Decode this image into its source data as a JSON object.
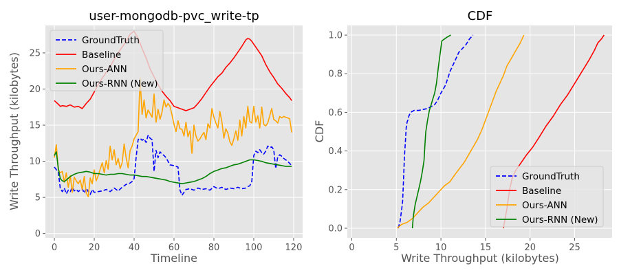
{
  "chart_data": [
    {
      "type": "line",
      "title": "user-mongodb-pvc_write-tp",
      "xlabel": "Timeline",
      "ylabel": "Write Throughput (kilobytes)",
      "xlim": [
        -4.5,
        124.5
      ],
      "ylim": [
        -0.6,
        28.8
      ],
      "xticks": [
        0,
        20,
        40,
        60,
        80,
        100,
        120
      ],
      "yticks": [
        0,
        5,
        10,
        15,
        20,
        25
      ],
      "grid": true,
      "legend_position": "top-left",
      "series": [
        {
          "name": "GroundTruth",
          "color": "#0000ff",
          "dash": "dashed",
          "x": [
            0,
            2,
            3,
            4,
            5,
            6,
            7,
            8,
            9,
            10,
            11,
            12,
            13,
            14,
            15,
            16,
            17,
            18,
            19,
            20,
            22,
            24,
            26,
            28,
            30,
            32,
            34,
            36,
            37,
            38,
            39,
            40,
            41,
            42,
            43,
            44,
            45,
            46,
            47,
            48,
            49,
            50,
            51,
            52,
            53,
            54,
            55,
            56,
            57,
            58,
            60,
            62,
            63,
            64,
            66,
            68,
            70,
            72,
            74,
            76,
            78,
            80,
            82,
            84,
            86,
            88,
            90,
            92,
            94,
            96,
            97,
            98,
            99,
            100,
            101,
            102,
            103,
            104,
            105,
            106,
            107,
            108,
            109,
            110,
            111,
            112,
            113,
            114,
            115,
            116,
            117,
            118,
            119
          ],
          "y": [
            9.2,
            8.5,
            6.2,
            5.8,
            6.3,
            5.5,
            6.0,
            5.8,
            6.4,
            5.9,
            6.1,
            5.8,
            6.0,
            6.2,
            5.6,
            6.3,
            5.8,
            5.4,
            6.1,
            5.7,
            5.8,
            5.9,
            6.1,
            5.8,
            6.3,
            5.9,
            6.4,
            6.8,
            6.9,
            7.0,
            7.2,
            7.6,
            10.5,
            13.0,
            13.2,
            12.9,
            13.1,
            12.6,
            13.6,
            13.2,
            13.0,
            8.6,
            11.5,
            10.5,
            11.3,
            11.0,
            10.8,
            10.5,
            10.0,
            9.5,
            9.4,
            9.2,
            6.0,
            5.3,
            6.1,
            6.2,
            6.0,
            6.3,
            6.1,
            6.2,
            6.0,
            6.5,
            6.2,
            6.4,
            6.1,
            6.3,
            6.2,
            6.4,
            6.2,
            6.3,
            6.5,
            6.6,
            7.2,
            10.8,
            11.4,
            11.2,
            11.6,
            11.2,
            11.0,
            11.4,
            12.1,
            11.9,
            12.0,
            11.6,
            9.0,
            10.6,
            10.9,
            10.7,
            10.4,
            10.2,
            10.0,
            9.7,
            9.4
          ]
        },
        {
          "name": "Baseline",
          "color": "#ff0000",
          "dash": "solid",
          "x": [
            0,
            2,
            3,
            4,
            6,
            8,
            10,
            12,
            14,
            16,
            18,
            20,
            22,
            24,
            26,
            28,
            30,
            32,
            34,
            36,
            38,
            40,
            42,
            44,
            46,
            48,
            50,
            52,
            54,
            56,
            58,
            60,
            62,
            64,
            66,
            68,
            70,
            72,
            74,
            76,
            78,
            80,
            82,
            84,
            86,
            88,
            90,
            92,
            94,
            96,
            97,
            98,
            99,
            100,
            102,
            104,
            106,
            108,
            110,
            112,
            114,
            116,
            118,
            119
          ],
          "y": [
            18.4,
            17.9,
            17.6,
            17.7,
            17.6,
            17.8,
            17.5,
            17.6,
            17.3,
            18.0,
            18.6,
            19.6,
            20.6,
            21.5,
            22.3,
            23.1,
            24.1,
            25.0,
            25.8,
            26.6,
            27.6,
            28.0,
            27.0,
            25.6,
            24.3,
            22.8,
            21.7,
            20.6,
            19.7,
            19.0,
            18.4,
            17.6,
            17.4,
            17.2,
            17.0,
            17.2,
            17.4,
            18.0,
            18.7,
            19.5,
            20.3,
            21.0,
            21.7,
            22.2,
            23.0,
            23.6,
            24.3,
            25.1,
            25.9,
            26.8,
            27.0,
            26.9,
            26.6,
            26.2,
            25.4,
            24.6,
            23.4,
            22.4,
            21.6,
            20.7,
            20.1,
            19.4,
            18.8,
            18.4
          ]
        },
        {
          "name": "Ours-ANN",
          "color": "#ffa500",
          "dash": "solid",
          "x": [
            0,
            1,
            2,
            3,
            4,
            5,
            6,
            7,
            8,
            9,
            10,
            11,
            12,
            13,
            14,
            15,
            16,
            17,
            18,
            19,
            20,
            21,
            22,
            23,
            24,
            25,
            26,
            27,
            28,
            29,
            30,
            31,
            32,
            33,
            34,
            35,
            36,
            37,
            38,
            39,
            40,
            41,
            42,
            43,
            44,
            45,
            46,
            47,
            48,
            49,
            50,
            51,
            52,
            53,
            54,
            55,
            56,
            57,
            58,
            59,
            60,
            61,
            62,
            63,
            64,
            65,
            66,
            67,
            68,
            69,
            70,
            71,
            72,
            73,
            74,
            75,
            76,
            77,
            78,
            79,
            80,
            81,
            82,
            83,
            84,
            85,
            86,
            87,
            88,
            89,
            90,
            91,
            92,
            93,
            94,
            95,
            96,
            97,
            98,
            99,
            100,
            101,
            102,
            103,
            104,
            105,
            106,
            107,
            108,
            109,
            110,
            111,
            112,
            113,
            114,
            115,
            116,
            117,
            118,
            119
          ],
          "y": [
            10.5,
            12.3,
            8.8,
            8.4,
            8.6,
            7.1,
            8.4,
            6.4,
            8.0,
            5.7,
            7.8,
            7.3,
            6.9,
            7.4,
            6.1,
            7.9,
            5.6,
            5.1,
            7.7,
            6.9,
            8.8,
            7.3,
            8.0,
            8.9,
            9.8,
            8.4,
            10.1,
            8.9,
            12.1,
            10.2,
            11.6,
            9.5,
            10.4,
            9.0,
            9.8,
            12.4,
            10.5,
            9.1,
            11.5,
            12.1,
            13.1,
            13.6,
            14.1,
            21.5,
            16.5,
            18.5,
            16.0,
            17.1,
            16.6,
            16.1,
            19.3,
            15.4,
            17.2,
            15.8,
            16.8,
            18.5,
            17.5,
            18.0,
            17.6,
            16.4,
            15.1,
            14.1,
            15.6,
            14.5,
            14.4,
            13.5,
            15.4,
            13.4,
            14.2,
            11.1,
            15.0,
            13.5,
            12.8,
            13.1,
            13.6,
            14.0,
            13.0,
            15.2,
            14.6,
            17.3,
            16.1,
            15.3,
            14.6,
            16.9,
            15.5,
            13.2,
            14.5,
            13.9,
            12.7,
            12.2,
            13.1,
            14.2,
            12.9,
            15.7,
            13.5,
            16.2,
            14.6,
            17.6,
            15.5,
            15.3,
            17.6,
            15.4,
            16.3,
            14.6,
            17.5,
            15.1,
            14.9,
            15.3,
            16.3,
            17.3,
            15.8,
            15.6,
            15.3,
            16.2,
            16.0,
            16.2,
            16.1,
            16.0,
            15.9,
            14.0
          ]
        },
        {
          "name": "Ours-RNN (New)",
          "color": "#008000",
          "dash": "solid",
          "x": [
            0,
            1,
            2,
            3,
            4,
            5,
            6,
            8,
            10,
            12,
            14,
            16,
            18,
            20,
            22,
            24,
            26,
            28,
            30,
            32,
            34,
            36,
            38,
            40,
            42,
            44,
            46,
            48,
            50,
            52,
            54,
            56,
            58,
            60,
            62,
            64,
            66,
            68,
            70,
            72,
            74,
            76,
            78,
            80,
            82,
            84,
            86,
            88,
            90,
            92,
            94,
            96,
            98,
            100,
            102,
            104,
            106,
            108,
            110,
            112,
            114,
            116,
            118,
            119
          ],
          "y": [
            10.8,
            11.3,
            9.0,
            7.6,
            7.3,
            7.2,
            7.4,
            7.9,
            8.2,
            8.4,
            8.5,
            8.6,
            8.5,
            8.3,
            8.3,
            8.2,
            8.1,
            8.2,
            8.2,
            8.3,
            8.3,
            8.2,
            8.1,
            8.1,
            8.0,
            7.9,
            7.9,
            7.8,
            7.7,
            7.6,
            7.5,
            7.4,
            7.2,
            7.1,
            7.0,
            6.9,
            7.0,
            7.1,
            7.2,
            7.4,
            7.6,
            7.9,
            8.3,
            8.6,
            8.8,
            9.0,
            9.1,
            9.3,
            9.5,
            9.6,
            9.8,
            10.0,
            10.2,
            10.2,
            10.1,
            10.0,
            9.8,
            9.7,
            9.6,
            9.5,
            9.4,
            9.3,
            9.3,
            9.3
          ]
        }
      ]
    },
    {
      "type": "line",
      "title": "CDF",
      "xlabel": "Write Throughput (kilobytes)",
      "ylabel": "CDF",
      "xlim": [
        -0.5,
        29.2
      ],
      "ylim": [
        -0.05,
        1.05
      ],
      "xticks": [
        0,
        5,
        10,
        15,
        20,
        25
      ],
      "yticks": [
        0.0,
        0.2,
        0.4,
        0.6,
        0.8,
        1.0
      ],
      "grid": true,
      "legend_position": "lower-right",
      "series": [
        {
          "name": "GroundTruth",
          "color": "#0000ff",
          "dash": "dashed",
          "x": [
            5.2,
            5.4,
            5.6,
            5.7,
            5.8,
            5.9,
            6.0,
            6.1,
            6.2,
            6.3,
            6.4,
            6.6,
            7.0,
            7.5,
            8.5,
            9.3,
            9.6,
            10.0,
            10.5,
            10.8,
            11.0,
            11.3,
            11.6,
            12.0,
            12.4,
            12.8,
            13.2,
            13.6
          ],
          "y": [
            0.0,
            0.03,
            0.1,
            0.14,
            0.25,
            0.37,
            0.44,
            0.52,
            0.55,
            0.56,
            0.58,
            0.6,
            0.61,
            0.61,
            0.62,
            0.64,
            0.66,
            0.7,
            0.74,
            0.78,
            0.81,
            0.84,
            0.87,
            0.91,
            0.93,
            0.95,
            0.98,
            1.0
          ]
        },
        {
          "name": "Baseline",
          "color": "#ff0000",
          "dash": "solid",
          "x": [
            17.0,
            17.4,
            17.7,
            18.0,
            18.4,
            19.0,
            19.6,
            20.3,
            21.0,
            21.8,
            22.6,
            23.4,
            24.2,
            25.0,
            25.8,
            26.6,
            27.2,
            27.6,
            28.0,
            28.3
          ],
          "y": [
            0.0,
            0.1,
            0.2,
            0.26,
            0.3,
            0.34,
            0.38,
            0.42,
            0.47,
            0.53,
            0.58,
            0.64,
            0.69,
            0.75,
            0.81,
            0.87,
            0.92,
            0.96,
            0.98,
            1.0
          ]
        },
        {
          "name": "Ours-ANN",
          "color": "#ffa500",
          "dash": "solid",
          "x": [
            5.1,
            5.6,
            6.2,
            6.8,
            7.2,
            7.6,
            8.0,
            8.6,
            9.2,
            9.8,
            10.4,
            11.0,
            11.6,
            12.1,
            12.6,
            13.1,
            13.6,
            14.1,
            14.6,
            15.0,
            15.4,
            15.8,
            16.2,
            16.6,
            17.0,
            17.4,
            17.9,
            18.4,
            18.9,
            19.3
          ],
          "y": [
            0.0,
            0.02,
            0.03,
            0.05,
            0.07,
            0.09,
            0.11,
            0.13,
            0.16,
            0.19,
            0.22,
            0.24,
            0.28,
            0.31,
            0.34,
            0.38,
            0.42,
            0.46,
            0.51,
            0.56,
            0.61,
            0.66,
            0.71,
            0.75,
            0.79,
            0.84,
            0.88,
            0.92,
            0.96,
            1.0
          ]
        },
        {
          "name": "Ours-RNN (New)",
          "color": "#008000",
          "dash": "solid",
          "x": [
            6.8,
            6.9,
            7.1,
            7.3,
            7.5,
            7.7,
            7.9,
            8.1,
            8.2,
            8.3,
            8.5,
            8.7,
            8.9,
            9.1,
            9.3,
            9.5,
            9.7,
            9.9,
            10.1,
            10.4,
            10.7,
            11.1
          ],
          "y": [
            0.0,
            0.06,
            0.12,
            0.16,
            0.2,
            0.24,
            0.29,
            0.35,
            0.43,
            0.5,
            0.56,
            0.61,
            0.64,
            0.67,
            0.7,
            0.75,
            0.83,
            0.9,
            0.97,
            0.98,
            0.99,
            1.0
          ]
        }
      ]
    }
  ]
}
